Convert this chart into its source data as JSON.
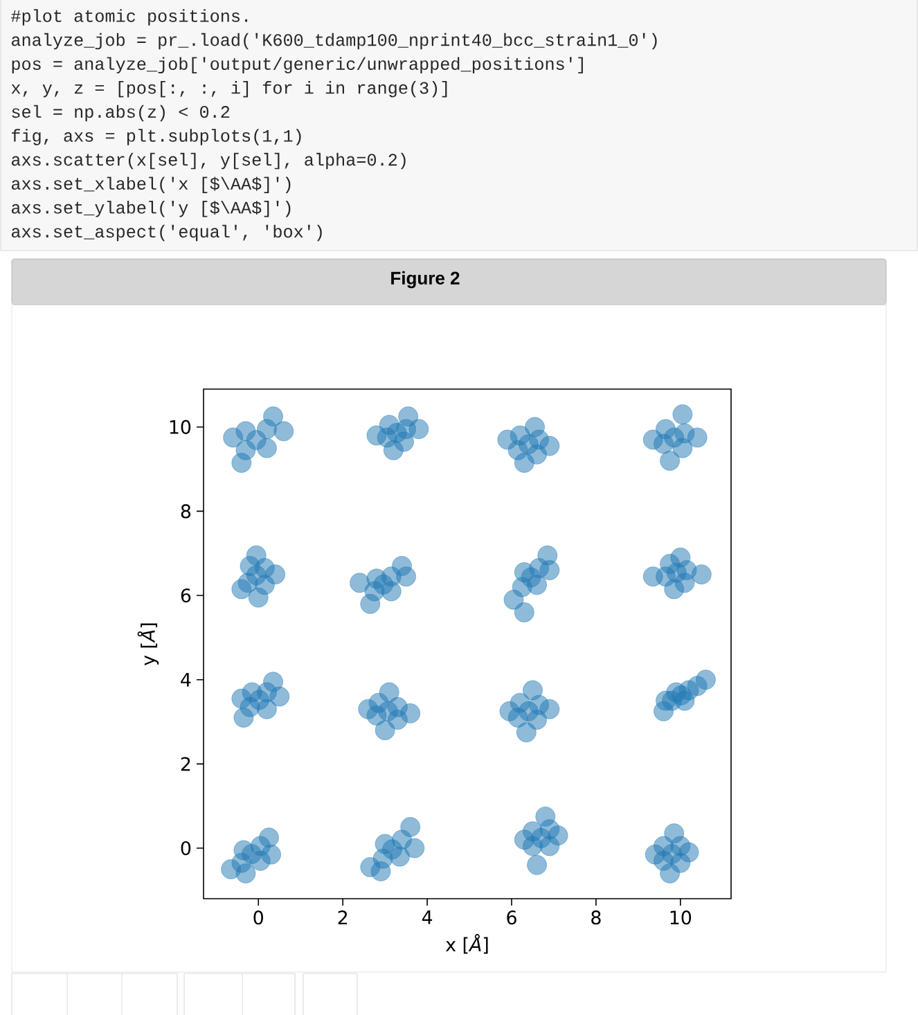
{
  "chart_data": {
    "type": "scatter",
    "title": "Figure 2",
    "xlabel": "x [*Å*]",
    "ylabel": "y [*Å*]",
    "annotations": [
      "#plot atomic positions.",
      "analyze_job = pr_.load('K600_tdamp100_nprint40_bcc_strain1_0')",
      "pos = analyze_job['output/generic/unwrapped_positions']",
      "x, y, z = [pos[:, :, i] for i in range(3)]",
      "sel = np.abs(z) < 0.2",
      "fig, axs = plt.subplots(1,1)",
      "axs.scatter(x[sel], y[sel], alpha=0.2)",
      "axs.set_xlabel('x [$\\AA$]')",
      "axs.set_ylabel('y [$\\AA$]')",
      "axs.set_aspect('equal', 'box')"
    ],
    "x": [
      -0.05,
      -0.3,
      0.2,
      -0.3,
      0.2,
      -0.4,
      0.35,
      -0.6,
      0.6,
      3.28,
      3.05,
      3.5,
      3.1,
      3.45,
      2.8,
      3.8,
      3.2,
      3.55,
      6.4,
      6.15,
      6.65,
      6.2,
      6.6,
      5.9,
      6.9,
      6.3,
      6.55,
      9.85,
      9.6,
      10.1,
      9.65,
      10.05,
      9.35,
      10.4,
      9.75,
      10.05,
      -0.05,
      -0.25,
      0.15,
      -0.2,
      0.15,
      -0.4,
      0.4,
      0.0,
      -0.05,
      2.96,
      2.75,
      3.15,
      2.8,
      3.15,
      2.65,
      3.4,
      2.4,
      3.5,
      6.46,
      6.25,
      6.65,
      6.3,
      6.6,
      6.05,
      6.85,
      6.3,
      6.9,
      9.91,
      9.65,
      10.15,
      9.75,
      10.1,
      9.35,
      10.5,
      9.85,
      10.0,
      0.02,
      -0.2,
      0.2,
      -0.15,
      0.2,
      -0.35,
      0.35,
      -0.4,
      0.5,
      3.07,
      2.8,
      3.3,
      2.85,
      3.3,
      2.6,
      3.6,
      3.0,
      3.1,
      6.4,
      6.15,
      6.65,
      6.2,
      6.6,
      5.95,
      6.9,
      6.35,
      6.5,
      10.02,
      9.8,
      10.2,
      9.9,
      10.1,
      9.6,
      10.4,
      9.65,
      10.6,
      -0.16,
      -0.4,
      0.05,
      -0.35,
      0.05,
      -0.65,
      0.25,
      -0.3,
      0.3,
      3.17,
      2.95,
      3.4,
      3.0,
      3.35,
      2.65,
      3.6,
      2.9,
      3.7,
      6.7,
      6.5,
      6.9,
      6.5,
      6.9,
      6.3,
      7.1,
      6.6,
      6.8,
      9.8,
      9.6,
      10.0,
      9.6,
      10.0,
      9.4,
      10.2,
      9.75,
      9.85
    ],
    "values": [
      9.69,
      9.45,
      9.95,
      9.9,
      9.5,
      9.15,
      10.25,
      9.75,
      9.9,
      9.86,
      9.75,
      9.95,
      10.05,
      9.65,
      9.8,
      9.95,
      9.45,
      10.25,
      9.59,
      9.45,
      9.7,
      9.8,
      9.35,
      9.7,
      9.55,
      9.15,
      10.0,
      9.75,
      9.6,
      9.85,
      9.95,
      9.5,
      9.7,
      9.75,
      9.2,
      10.3,
      6.48,
      6.3,
      6.65,
      6.7,
      6.25,
      6.15,
      6.5,
      5.95,
      6.95,
      6.26,
      6.1,
      6.45,
      6.4,
      6.1,
      5.8,
      6.7,
      6.3,
      6.45,
      6.43,
      6.2,
      6.65,
      6.55,
      6.25,
      5.9,
      6.95,
      5.6,
      6.6,
      6.54,
      6.45,
      6.6,
      6.75,
      6.3,
      6.45,
      6.5,
      6.15,
      6.9,
      3.52,
      3.35,
      3.7,
      3.7,
      3.3,
      3.1,
      3.95,
      3.55,
      3.6,
      3.25,
      3.15,
      3.35,
      3.45,
      3.05,
      3.3,
      3.2,
      2.8,
      3.7,
      3.25,
      3.1,
      3.4,
      3.45,
      3.05,
      3.25,
      3.3,
      2.75,
      3.75,
      3.63,
      3.5,
      3.75,
      3.7,
      3.5,
      3.25,
      3.85,
      3.5,
      4.0,
      -0.14,
      -0.35,
      0.05,
      -0.05,
      -0.3,
      -0.5,
      0.25,
      -0.6,
      -0.15,
      -0.03,
      -0.25,
      0.2,
      0.1,
      -0.2,
      -0.45,
      0.5,
      -0.55,
      0.0,
      0.24,
      0.05,
      0.45,
      0.4,
      0.05,
      0.2,
      0.3,
      -0.4,
      0.75,
      -0.14,
      -0.3,
      0.05,
      0.05,
      -0.35,
      -0.15,
      -0.1,
      -0.6,
      0.35
    ],
    "color": "#1f77b4",
    "marker": "circle",
    "xlim": [
      -1.3,
      11.2
    ],
    "ylim": [
      -1.2,
      10.9
    ],
    "xticks": [
      0,
      2,
      4,
      6,
      8,
      10
    ],
    "yticks": [
      0,
      2,
      4,
      6,
      8,
      10
    ]
  }
}
